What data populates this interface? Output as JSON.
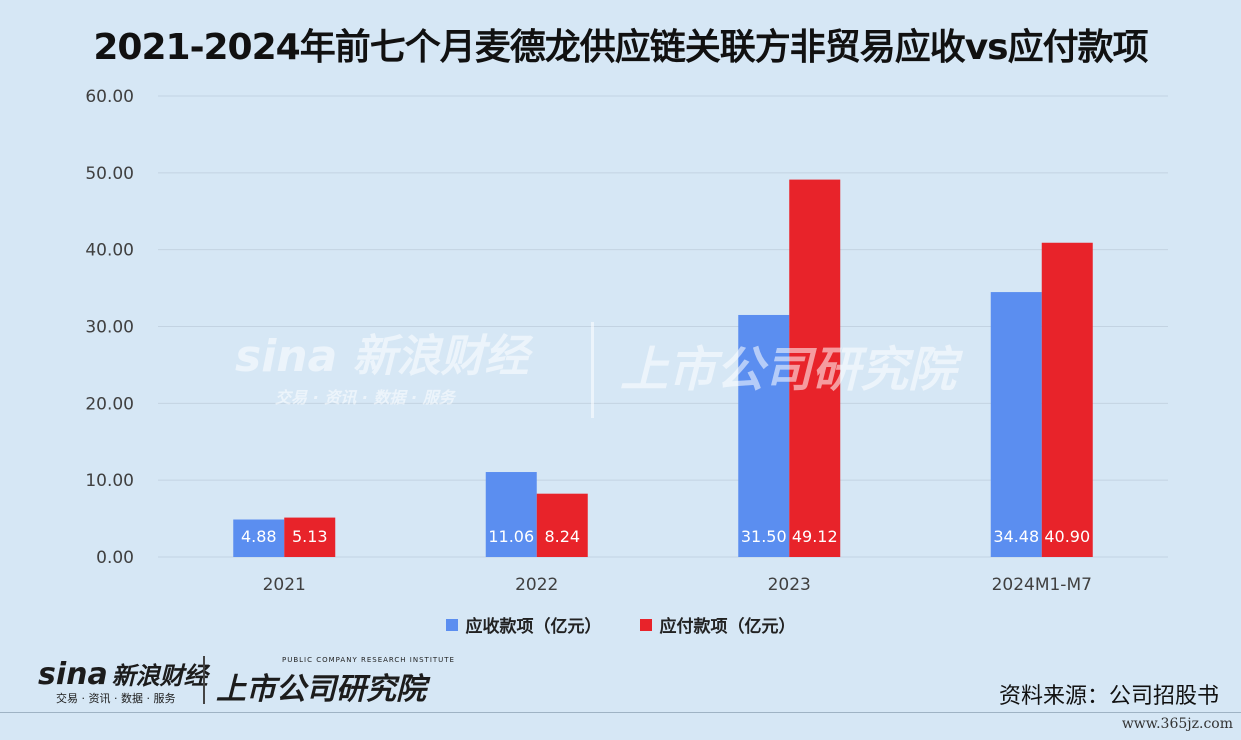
{
  "page": {
    "title": "2021-2024年前七个月麦德龙供应链关联方非贸易应收vs应付款项",
    "source": "资料来源：公司招股书",
    "site": "www.365jz.com"
  },
  "logo": {
    "sina_brand": "sina",
    "sina_cn": "新浪财经",
    "sina_tagline": "交易 · 资讯 · 数据 · 服务",
    "inst_en": "PUBLIC COMPANY RESEARCH INSTITUTE",
    "inst_cn": "上市公司研究院"
  },
  "watermark": {
    "left": "sina 新浪财经",
    "left_tagline": "交易 · 资讯 · 数据 · 服务",
    "right": "上市公司研究院"
  },
  "colors": {
    "series1": "#5b8ef0",
    "series2": "#e8232a",
    "grid": "#c3d3e2",
    "axis_text": "#404040"
  },
  "chart_data": {
    "type": "bar",
    "title": "2021-2024年前七个月麦德龙供应链关联方非贸易应收vs应付款项",
    "categories": [
      "2021",
      "2022",
      "2023",
      "2024M1-M7"
    ],
    "series": [
      {
        "name": "应收款项（亿元）",
        "values": [
          4.88,
          11.06,
          31.5,
          34.48
        ],
        "labels": [
          "4.88",
          "11.06",
          "31.50",
          "34.48"
        ]
      },
      {
        "name": "应付款项（亿元）",
        "values": [
          5.13,
          8.24,
          49.12,
          40.9
        ],
        "labels": [
          "5.13",
          "8.24",
          "49.12",
          "40.90"
        ]
      }
    ],
    "yticks": [
      "0.00",
      "10.00",
      "20.00",
      "30.00",
      "40.00",
      "50.00",
      "60.00"
    ],
    "ylim": [
      0,
      60
    ],
    "grid": true,
    "legend_position": "bottom"
  }
}
